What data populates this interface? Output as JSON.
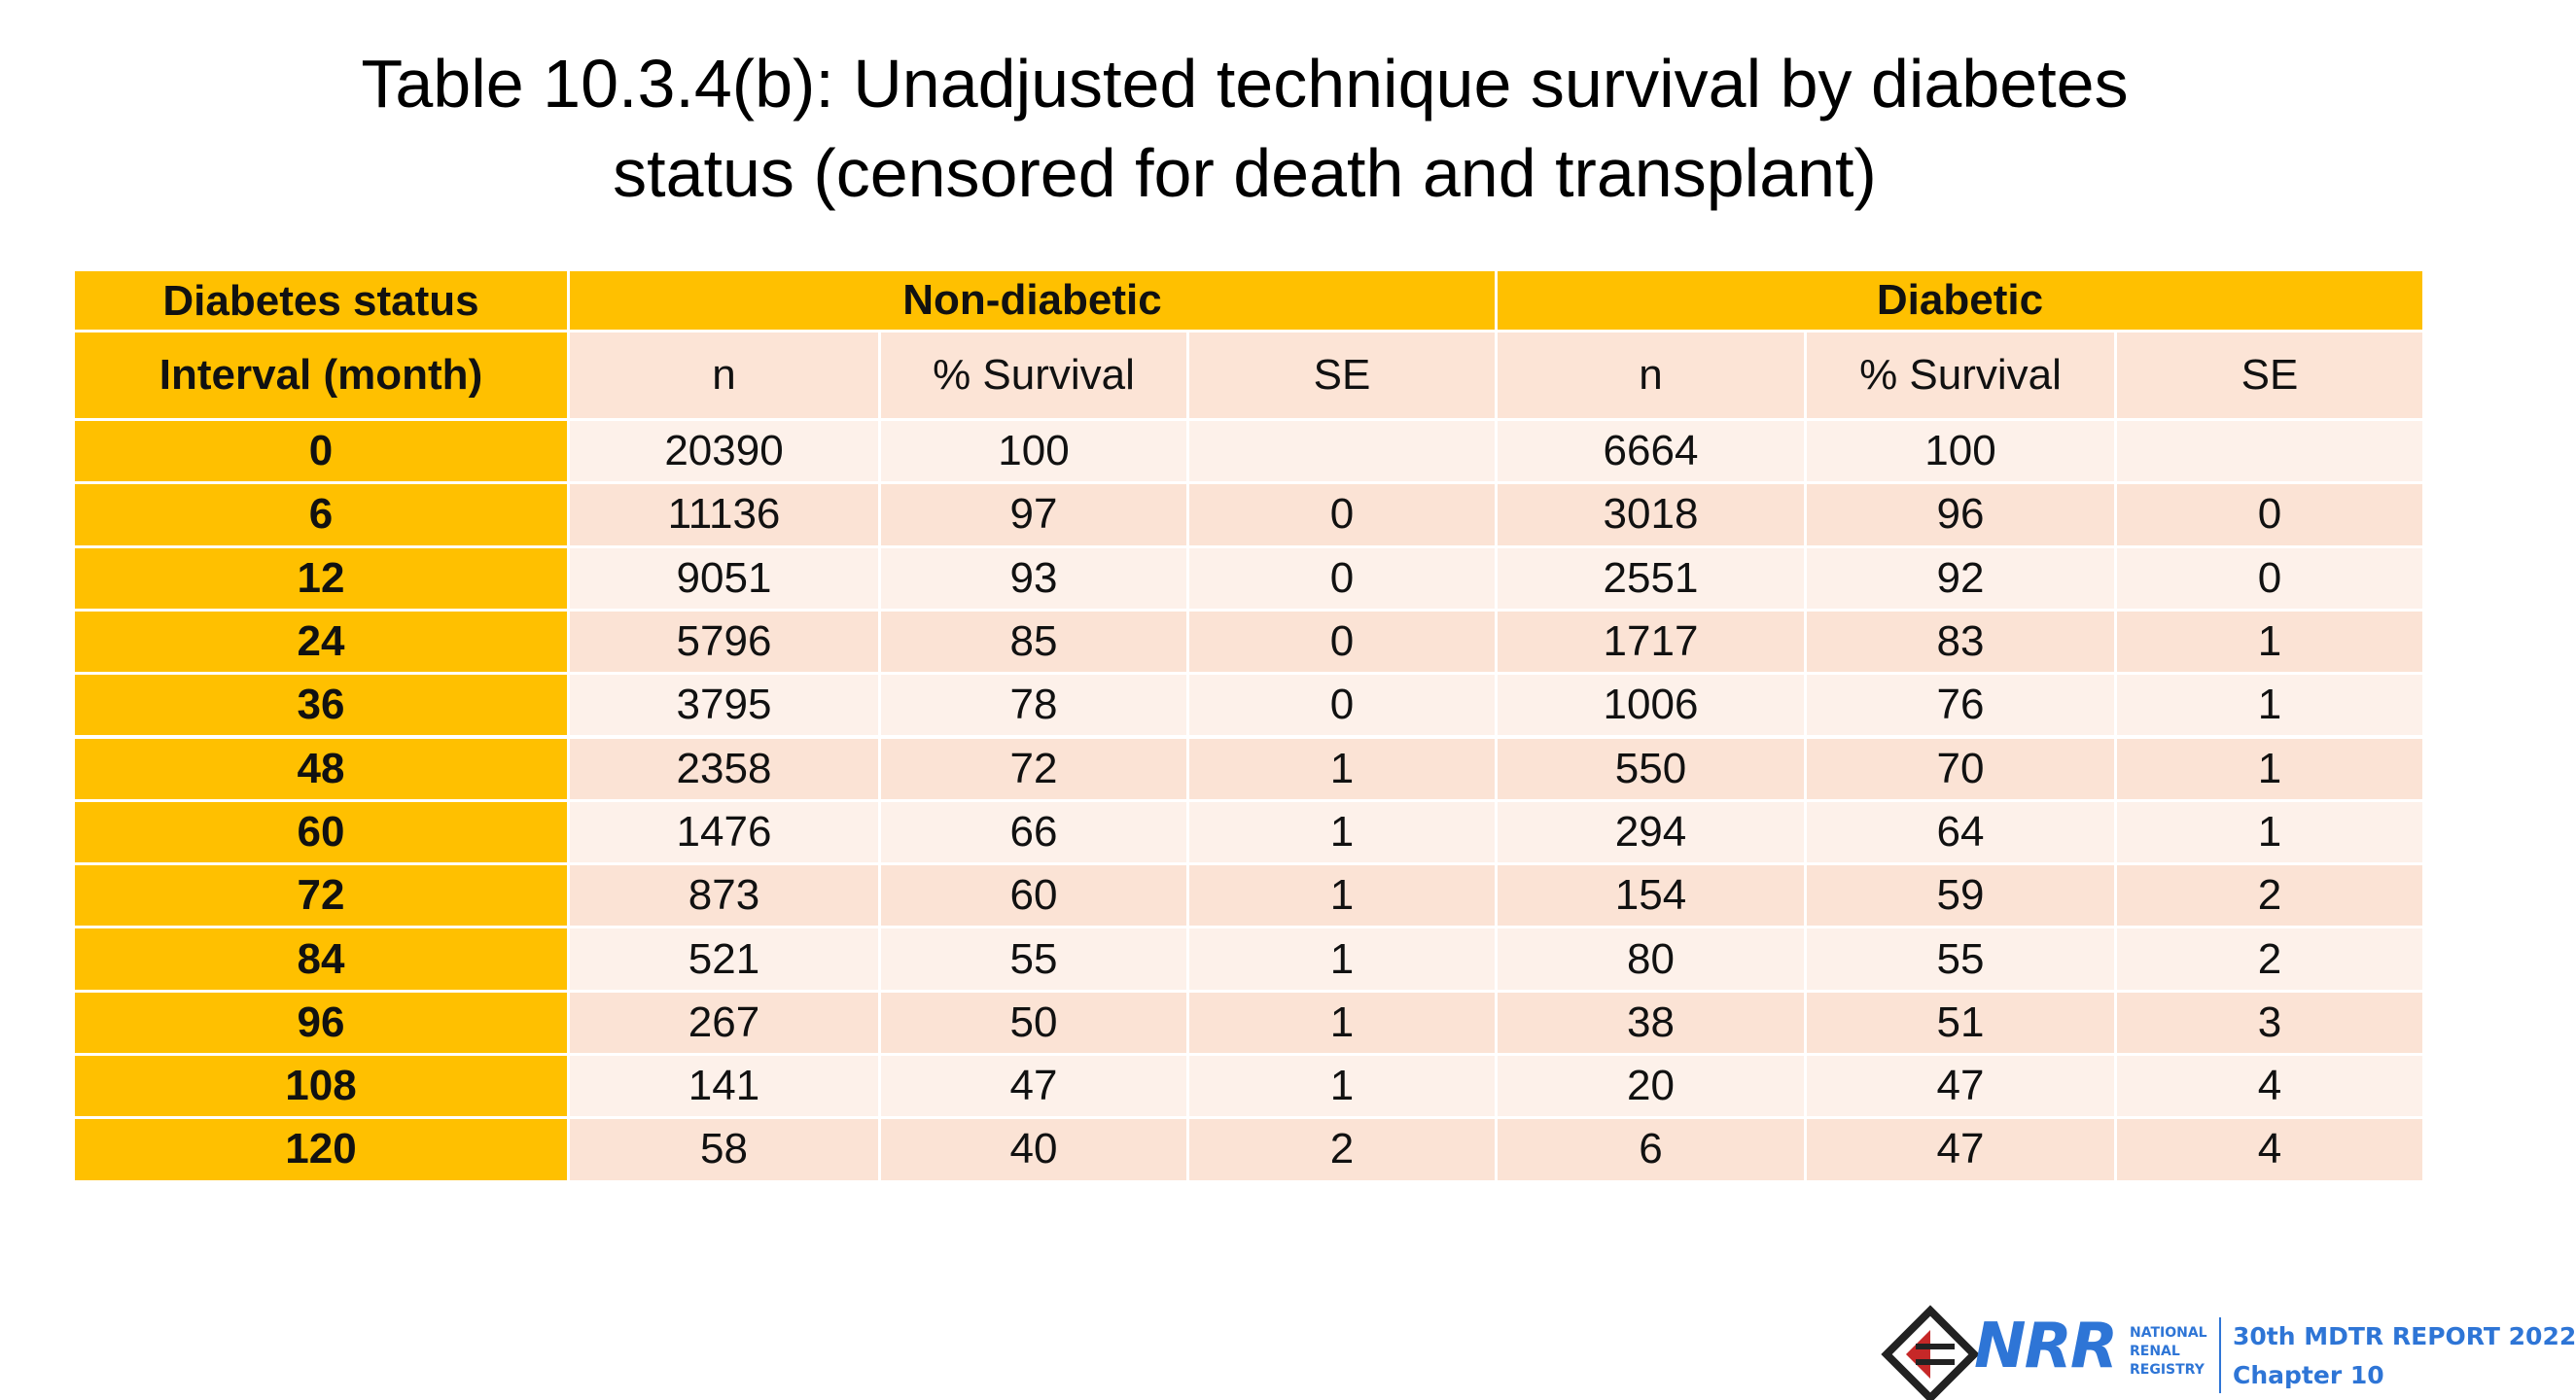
{
  "header": {
    "title": "Table 10.3.4(b): Unadjusted technique survival by diabetes\nstatus (censored for death and transplant)"
  },
  "table": {
    "group_label": "Diabetes status",
    "row_label": "Interval (month)",
    "groups": [
      "Non-diabetic",
      "Diabetic"
    ],
    "columns": [
      "n",
      "% Survival",
      "SE",
      "n",
      "% Survival",
      "SE"
    ],
    "rows": [
      [
        0,
        20390,
        100,
        null,
        6664,
        100,
        null
      ],
      [
        6,
        11136,
        97,
        0,
        3018,
        96,
        0
      ],
      [
        12,
        9051,
        93,
        0,
        2551,
        92,
        0
      ],
      [
        24,
        5796,
        85,
        0,
        1717,
        83,
        1
      ],
      [
        36,
        3795,
        78,
        0,
        1006,
        76,
        1
      ],
      [
        48,
        2358,
        72,
        1,
        550,
        70,
        1
      ],
      [
        60,
        1476,
        66,
        1,
        294,
        64,
        1
      ],
      [
        72,
        873,
        60,
        1,
        154,
        59,
        2
      ],
      [
        84,
        521,
        55,
        1,
        80,
        55,
        2
      ],
      [
        96,
        267,
        50,
        1,
        38,
        51,
        3
      ],
      [
        108,
        141,
        47,
        1,
        20,
        47,
        4
      ],
      [
        120,
        58,
        40,
        2,
        6,
        47,
        4
      ]
    ]
  },
  "footer": {
    "logo": "NRR",
    "logo_lines": [
      "NATIONAL",
      "RENAL",
      "REGISTRY"
    ],
    "report": "30th MDTR REPORT 2022",
    "chapter": "Chapter 10"
  }
}
